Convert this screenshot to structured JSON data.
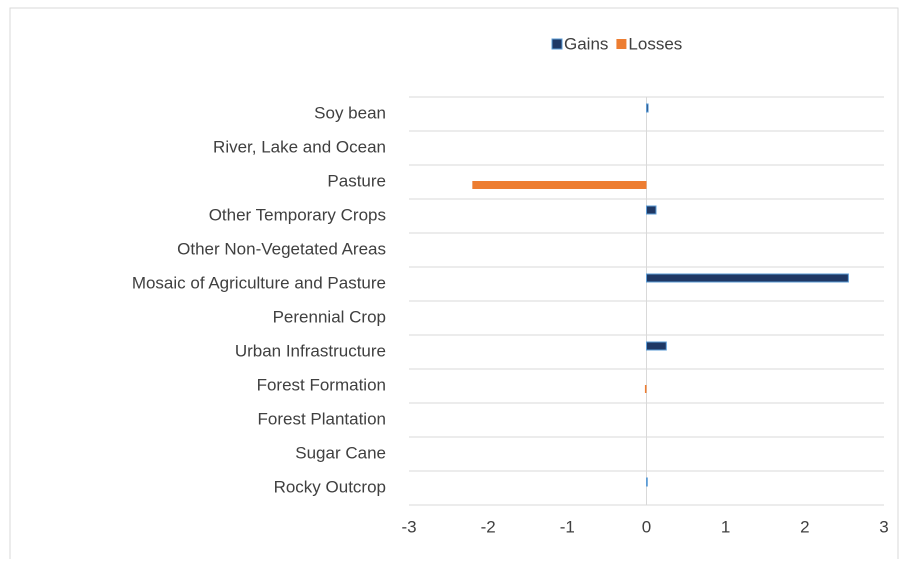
{
  "chart_data": {
    "type": "hbar",
    "categories": [
      "Soy bean",
      "River, Lake and Ocean",
      "Pasture",
      "Other Temporary Crops",
      "Other Non-Vegetated Areas",
      "Mosaic of Agriculture and Pasture",
      "Perennial Crop",
      "Urban Infrastructure",
      "Forest Formation",
      "Forest Plantation",
      "Sugar Cane",
      "Rocky Outcrop"
    ],
    "series": [
      {
        "name": "Gains",
        "color": "#1f3864",
        "values": [
          0.02,
          0,
          0,
          0.12,
          0,
          2.55,
          0,
          0.25,
          0,
          0,
          0,
          0.01
        ]
      },
      {
        "name": "Losses",
        "color": "#ed7d31",
        "values": [
          0,
          0,
          -2.2,
          0,
          0,
          0,
          0,
          0,
          -0.02,
          0,
          0,
          0
        ]
      }
    ],
    "xlim": [
      -3,
      3
    ],
    "xticks": [
      -3,
      -2,
      -1,
      0,
      1,
      2,
      3
    ],
    "grid": true,
    "legend": "top"
  }
}
